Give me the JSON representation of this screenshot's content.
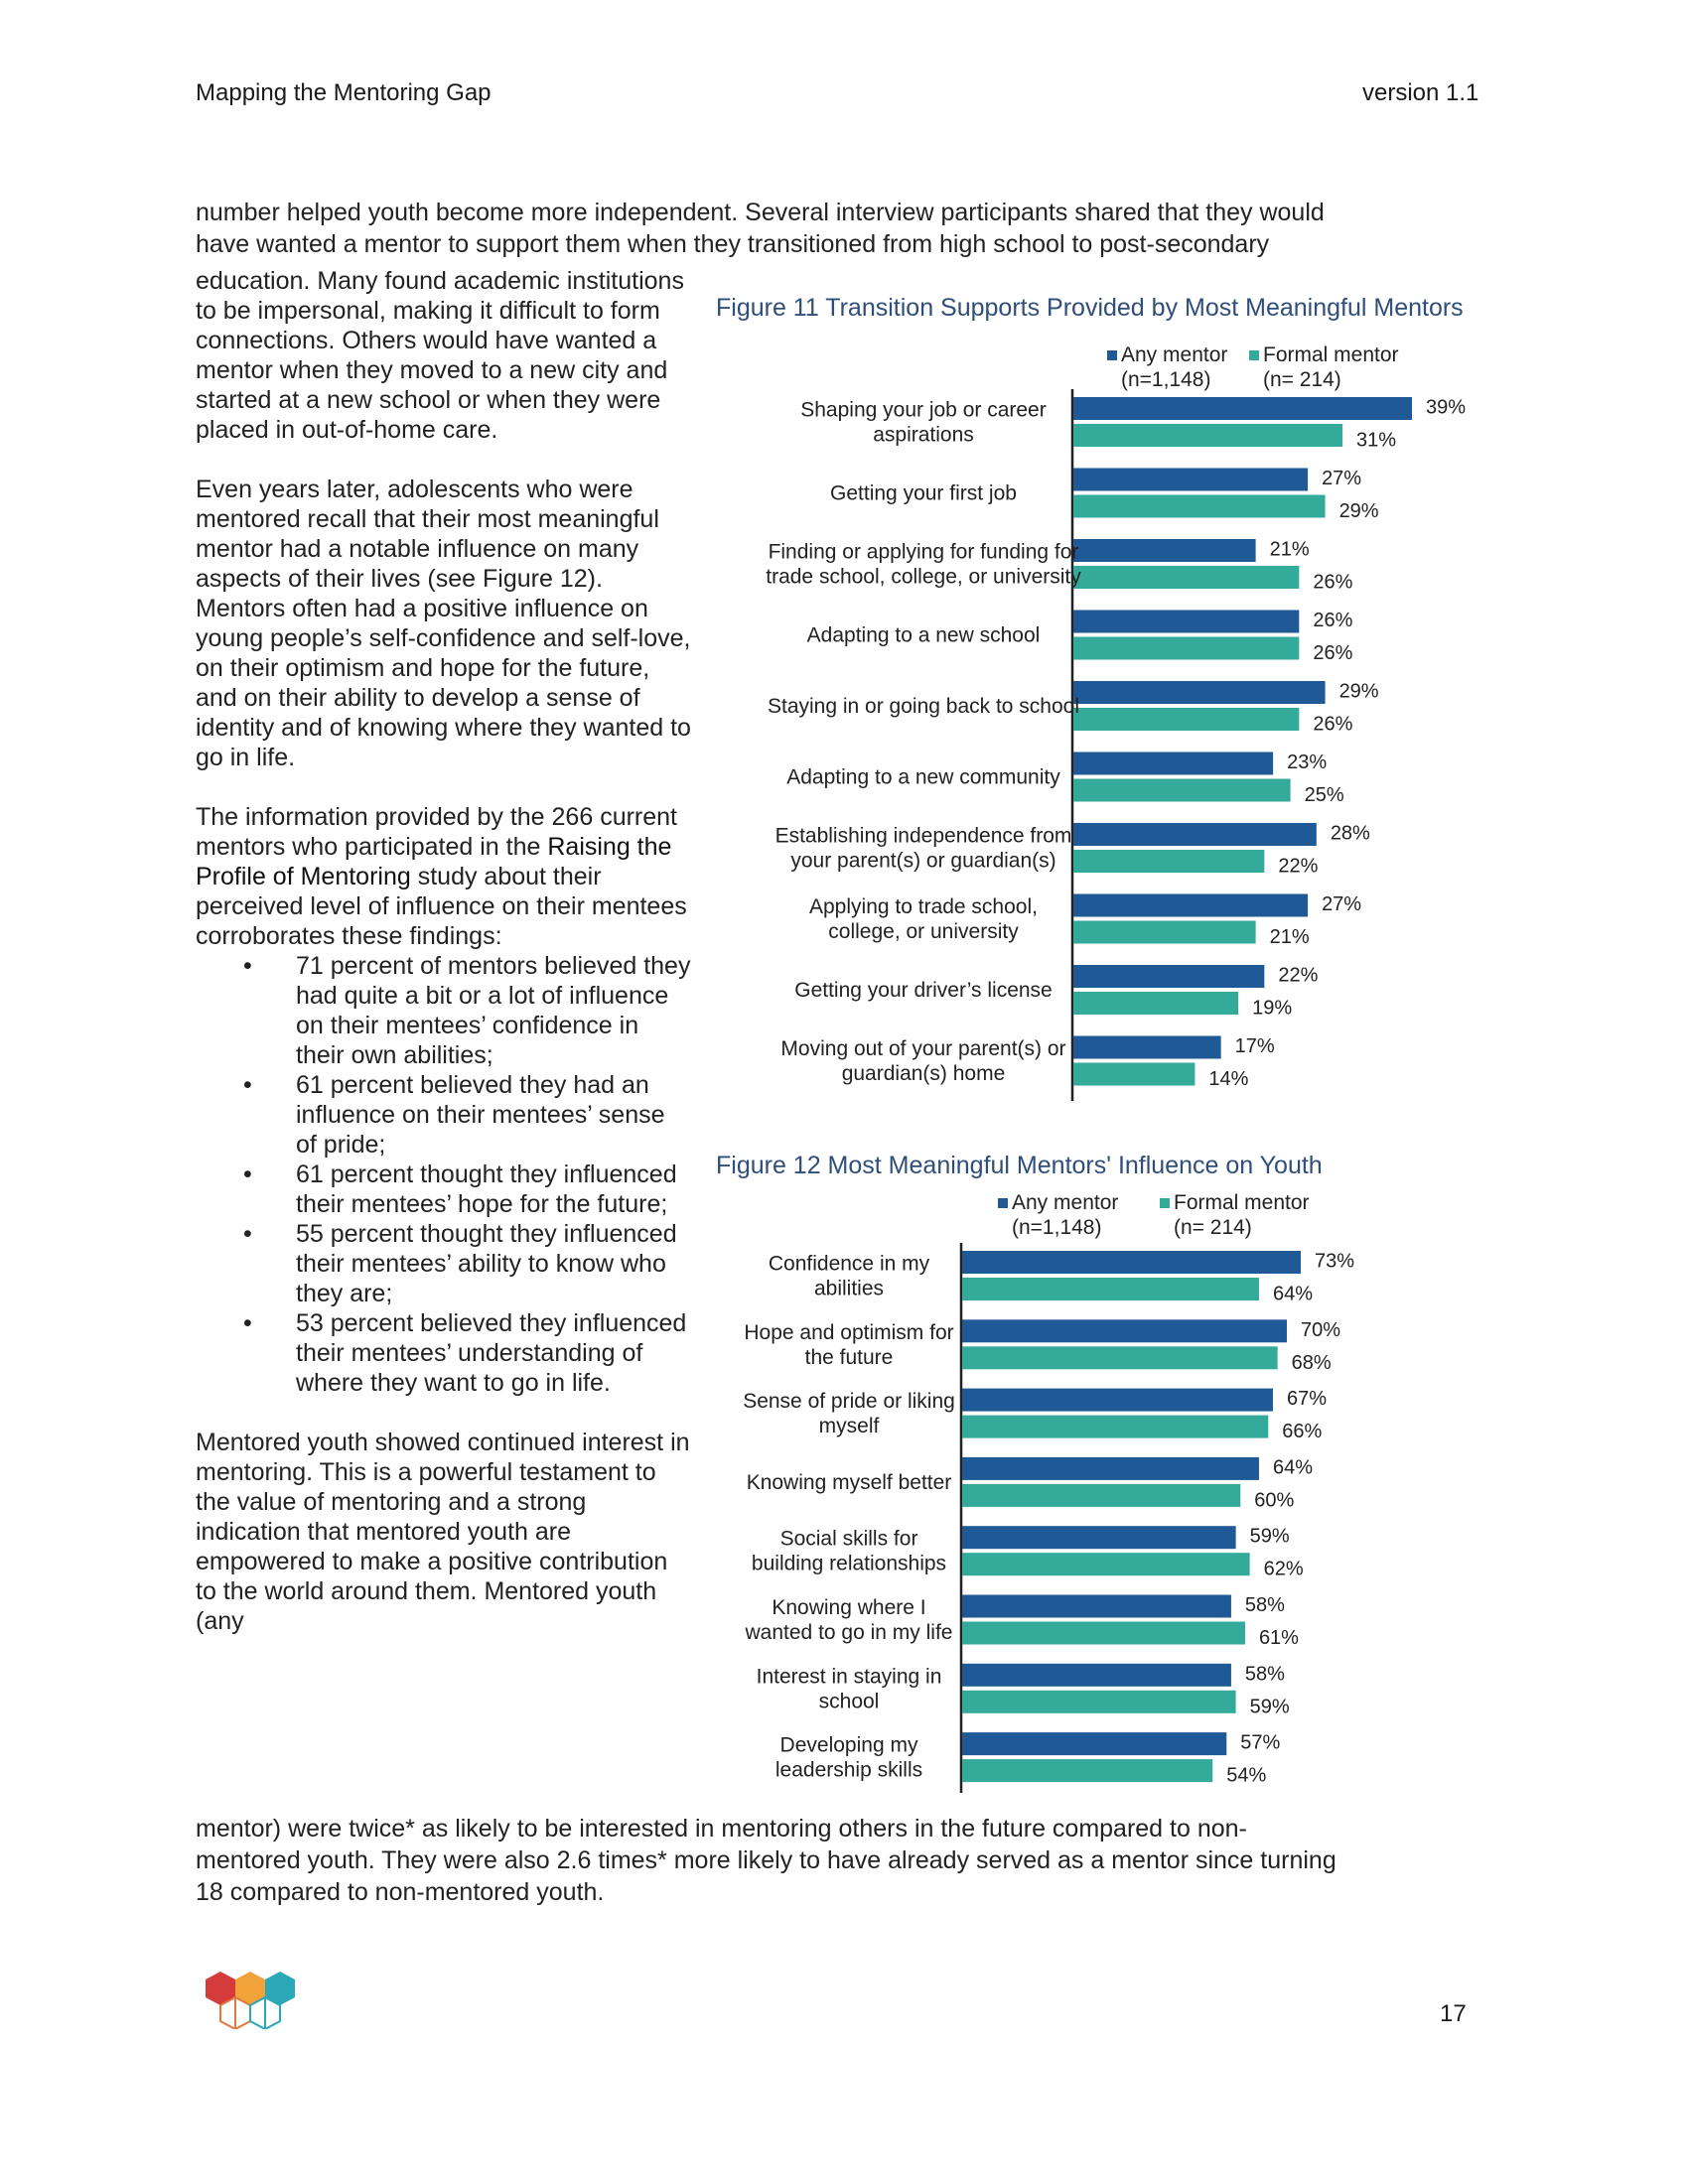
{
  "header": {
    "left": "Mapping the Mentoring Gap",
    "right": "version 1.1"
  },
  "intro": {
    "line1": "number helped youth become more independent. Several interview participants shared that they would",
    "line2": "have wanted a mentor to support them when they transitioned from high school to post-secondary"
  },
  "column": {
    "para1": "education. Many found academic institutions to be impersonal, making it difficult to form connections. Others would have wanted a mentor when they moved to a new city and started at a new school or when they were placed in out-of-home care.",
    "para2": "Even years later, adolescents who were mentored recall that their most meaningful mentor had a notable influence on many aspects of their lives (see Figure 12). Mentors often had a positive influence on young people’s self-confidence and self-love, on their optimism and hope for the future, and on their ability to develop a sense of identity and of knowing where they wanted to go in life.",
    "para3_before": "The information provided by the 266 current mentors who participated in the ",
    "para3_link": "Raising the Profile of Mentoring",
    "para3_after": " study about their perceived level of influence on their mentees corroborates these findings:",
    "bullets": [
      "71 percent of mentors believed they had quite a bit or a lot of influence on their mentees’ confidence in their own abilities;",
      "61 percent believed they had an influence on their mentees’ sense of pride;",
      "61 percent thought they influenced their mentees’ hope for the future;",
      "55 percent thought they influenced their mentees’ ability to know who they are;",
      "53 percent believed they influenced their mentees’ understanding of where they want to go in life."
    ],
    "para4": "Mentored youth showed continued interest in mentoring. This is a powerful testament to the value of mentoring and a strong indication that mentored youth are empowered to make a positive contribution to the world around them. Mentored youth (any"
  },
  "outro": {
    "line1": "mentor) were twice* as likely to be interested in mentoring others in the future compared to non-",
    "line2": "mentored youth. They were also 2.6 times* more likely to have already served as a mentor since turning",
    "line3": "18 compared to non-mentored youth."
  },
  "page_number": "17",
  "colors": {
    "any_mentor": "#1f5a96",
    "formal_mentor": "#34ab9a",
    "figure_title": "#2f4e7a"
  },
  "chart_data": [
    {
      "type": "bar",
      "orientation": "horizontal",
      "title": "Figure 11 Transition Supports Provided by Most Meaningful Mentors",
      "legend": [
        {
          "name": "Any mentor",
          "n": "(n=1,148)"
        },
        {
          "name": "Formal mentor",
          "n": "(n= 214)"
        }
      ],
      "legend_position": "top",
      "categories": [
        [
          "Shaping your job or career",
          "aspirations"
        ],
        [
          "Getting your first job"
        ],
        [
          "Finding or applying for funding for",
          "trade school, college, or university"
        ],
        [
          "Adapting to a new school"
        ],
        [
          "Staying in or going back to school"
        ],
        [
          "Adapting to a new community"
        ],
        [
          "Establishing independence from",
          "your parent(s) or guardian(s)"
        ],
        [
          "Applying to trade school,",
          "college, or university"
        ],
        [
          "Getting your driver’s license"
        ],
        [
          "Moving out of your parent(s) or",
          "guardian(s) home"
        ]
      ],
      "series": [
        {
          "name": "Any mentor",
          "values": [
            39,
            27,
            21,
            26,
            29,
            23,
            28,
            27,
            22,
            17
          ]
        },
        {
          "name": "Formal mentor",
          "values": [
            31,
            29,
            26,
            26,
            26,
            25,
            22,
            21,
            19,
            14
          ]
        }
      ],
      "value_suffix": "%",
      "xlim": [
        0,
        39
      ],
      "grid": false
    },
    {
      "type": "bar",
      "orientation": "horizontal",
      "title": "Figure 12 Most Meaningful Mentors' Influence on Youth",
      "legend": [
        {
          "name": "Any mentor",
          "n": "(n=1,148)"
        },
        {
          "name": "Formal mentor",
          "n": "(n= 214)"
        }
      ],
      "legend_position": "top",
      "categories": [
        [
          "Confidence in my",
          "abilities"
        ],
        [
          "Hope and optimism for",
          "the future"
        ],
        [
          "Sense of pride or liking",
          "myself"
        ],
        [
          "Knowing myself better"
        ],
        [
          "Social skills for",
          "building relationships"
        ],
        [
          "Knowing where I",
          "wanted to go in my life"
        ],
        [
          "Interest in staying in",
          "school"
        ],
        [
          "Developing my",
          "leadership skills"
        ]
      ],
      "series": [
        {
          "name": "Any mentor",
          "values": [
            73,
            70,
            67,
            64,
            59,
            58,
            58,
            57
          ]
        },
        {
          "name": "Formal mentor",
          "values": [
            64,
            68,
            66,
            60,
            62,
            61,
            59,
            54
          ]
        }
      ],
      "value_suffix": "%",
      "xlim": [
        0,
        73
      ],
      "grid": false
    }
  ]
}
